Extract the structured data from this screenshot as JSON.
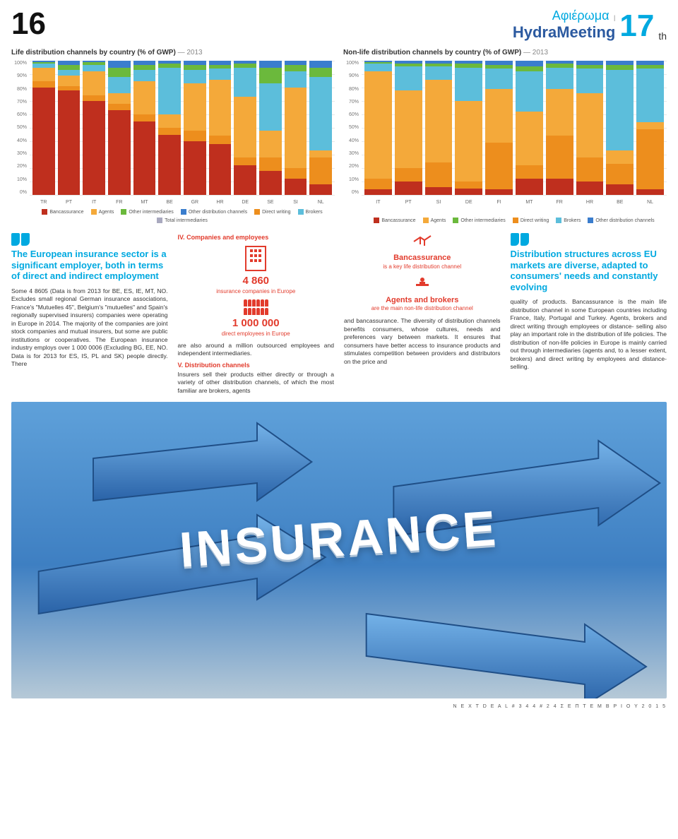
{
  "header": {
    "page_left": "16",
    "sub": "Αφιέρωμα",
    "divider": "|",
    "title": "HydraMeeting",
    "page_right_num": "17",
    "page_right_suffix": "th"
  },
  "charts": {
    "ylabels": [
      "100%",
      "90%",
      "80%",
      "70%",
      "60%",
      "50%",
      "40%",
      "30%",
      "20%",
      "10%",
      "0%"
    ],
    "ylim": [
      0,
      100
    ],
    "ytick_step": 10,
    "grid_color": "#e8e8e8",
    "bg": "#ffffff",
    "series_colors": {
      "Bancassurance": "#bf2f1e",
      "Agents": "#f4a93a",
      "Other intermediaries": "#6bb93c",
      "Other distribution channels": "#3a7dcd",
      "Direct writing": "#ed8e1d",
      "Brokers": "#5cbedb",
      "Total intermediaries": "#a9a9bf"
    },
    "life": {
      "title": "Life distribution channels by country (% of GWP)",
      "year": "— 2013",
      "categories": [
        "TR",
        "PT",
        "IT",
        "FR",
        "MT",
        "BE",
        "GR",
        "HR",
        "DE",
        "SE",
        "SI",
        "NL"
      ],
      "legend": [
        "Bancassurance",
        "Agents",
        "Other intermediaries",
        "Other distribution channels",
        "Direct writing",
        "Brokers",
        "Total intermediaries"
      ],
      "stacks": [
        {
          "Bancassurance": 80,
          "Direct writing": 5,
          "Agents": 10,
          "Brokers": 3,
          "Other intermediaries": 1,
          "Other distribution channels": 1
        },
        {
          "Bancassurance": 78,
          "Direct writing": 3,
          "Agents": 8,
          "Brokers": 4,
          "Other intermediaries": 4,
          "Other distribution channels": 3
        },
        {
          "Bancassurance": 70,
          "Direct writing": 4,
          "Agents": 18,
          "Brokers": 5,
          "Other intermediaries": 2,
          "Other distribution channels": 1
        },
        {
          "Bancassurance": 63,
          "Direct writing": 5,
          "Agents": 8,
          "Brokers": 12,
          "Other intermediaries": 7,
          "Other distribution channels": 5
        },
        {
          "Bancassurance": 55,
          "Direct writing": 5,
          "Agents": 25,
          "Brokers": 8,
          "Other intermediaries": 4,
          "Other distribution channels": 3
        },
        {
          "Bancassurance": 45,
          "Direct writing": 5,
          "Agents": 10,
          "Brokers": 35,
          "Other intermediaries": 3,
          "Other distribution channels": 2
        },
        {
          "Bancassurance": 40,
          "Direct writing": 8,
          "Agents": 35,
          "Brokers": 10,
          "Other intermediaries": 4,
          "Other distribution channels": 3
        },
        {
          "Bancassurance": 38,
          "Direct writing": 6,
          "Agents": 42,
          "Brokers": 8,
          "Other intermediaries": 3,
          "Other distribution channels": 3
        },
        {
          "Bancassurance": 22,
          "Direct writing": 6,
          "Agents": 45,
          "Brokers": 22,
          "Other intermediaries": 3,
          "Other distribution channels": 2
        },
        {
          "Bancassurance": 18,
          "Direct writing": 10,
          "Agents": 20,
          "Brokers": 35,
          "Other intermediaries": 12,
          "Other distribution channels": 5
        },
        {
          "Bancassurance": 12,
          "Direct writing": 8,
          "Agents": 60,
          "Brokers": 12,
          "Other intermediaries": 5,
          "Other distribution channels": 3
        },
        {
          "Bancassurance": 8,
          "Direct writing": 20,
          "Agents": 5,
          "Brokers": 55,
          "Other intermediaries": 7,
          "Other distribution channels": 5
        }
      ]
    },
    "nonlife": {
      "title": "Non-life distribution channels by country (% of GWP)",
      "year": "— 2013",
      "categories": [
        "IT",
        "PT",
        "SI",
        "DE",
        "FI",
        "MT",
        "FR",
        "HR",
        "BE",
        "NL"
      ],
      "legend": [
        "Bancassurance",
        "Agents",
        "Other intermediaries",
        "Direct writing",
        "Brokers",
        "Other distribution channels"
      ],
      "stacks": [
        {
          "Bancassurance": 4,
          "Direct writing": 8,
          "Agents": 80,
          "Brokers": 6,
          "Other intermediaries": 1,
          "Other distribution channels": 1
        },
        {
          "Bancassurance": 10,
          "Direct writing": 10,
          "Agents": 58,
          "Brokers": 18,
          "Other intermediaries": 2,
          "Other distribution channels": 2
        },
        {
          "Bancassurance": 6,
          "Direct writing": 18,
          "Agents": 62,
          "Brokers": 10,
          "Other intermediaries": 2,
          "Other distribution channels": 2
        },
        {
          "Bancassurance": 5,
          "Direct writing": 5,
          "Agents": 60,
          "Brokers": 25,
          "Other intermediaries": 3,
          "Other distribution channels": 2
        },
        {
          "Bancassurance": 4,
          "Direct writing": 35,
          "Agents": 40,
          "Brokers": 15,
          "Other intermediaries": 3,
          "Other distribution channels": 3
        },
        {
          "Bancassurance": 12,
          "Direct writing": 10,
          "Agents": 40,
          "Brokers": 30,
          "Other intermediaries": 4,
          "Other distribution channels": 4
        },
        {
          "Bancassurance": 12,
          "Direct writing": 32,
          "Agents": 35,
          "Brokers": 16,
          "Other intermediaries": 3,
          "Other distribution channels": 2
        },
        {
          "Bancassurance": 10,
          "Direct writing": 18,
          "Agents": 48,
          "Brokers": 18,
          "Other intermediaries": 3,
          "Other distribution channels": 3
        },
        {
          "Bancassurance": 8,
          "Direct writing": 15,
          "Agents": 10,
          "Brokers": 60,
          "Other intermediaries": 4,
          "Other distribution channels": 3
        },
        {
          "Bancassurance": 4,
          "Direct writing": 45,
          "Agents": 5,
          "Brokers": 40,
          "Other intermediaries": 3,
          "Other distribution channels": 3
        }
      ]
    }
  },
  "col1": {
    "quote": "The European insurance sector is a significant employer, both in terms of direct and indirect employment",
    "para": "Some 4 8605 (Data is from 2013 for BE, ES, IE, MT, NO. Excludes small regional German insurance associations, France's \"Mutuelles 45\", Belgium's \"mutuelles\" and Spain's regionally supervised insurers) companies were operating in Europe in 2014. The majority of the companies are joint stock companies and mutual insurers, but some are public institutions or cooperatives.  The European insurance industry employs over 1 000 0006 (Excluding BG, EE, NO. Data is for 2013 for ES, IS, PL and SK) people directly. There"
  },
  "col2": {
    "heading": "IV. Companies and employees",
    "fig1_num": "4 860",
    "fig1_cap": "insurance companies in Europe",
    "fig2_num": "1 000 000",
    "fig2_cap": "direct employees in Europe",
    "p1": "are also around a million outsourced employees and independent intermediaries.",
    "h2": "V. Distribution channels",
    "p2": "Insurers sell their products either directly or through a variety of other distribution channels, of which the most familiar are brokers, agents"
  },
  "col3": {
    "c1_h": "Bancassurance",
    "c1_s": "is a key life distribution channel",
    "c2_h": "Agents and brokers",
    "c2_s": "are the main non-life distribution channel",
    "p": "and bancassurance.  The diversity of distribution channels benefits consumers, whose cultures, needs and preferences vary between markets. It ensures that consumers have better access to insurance products and stimulates competition between providers and distributors on the price and"
  },
  "col4": {
    "quote": "Distribution structures across EU markets are diverse, adapted to consumers' needs and constantly evolving",
    "p": "quality of products.  Bancassurance is the main life distribution channel in some European countries including France, Italy, Portugal and Turkey. Agents, brokers and direct writing through employees or distance- selling also play an important role in the distribution of life policies. The distribution of non-life policies in Europe is mainly carried out through intermediaries (agents and, to a lesser extent, brokers) and direct writing by employees and distance-selling."
  },
  "hero": {
    "word": "INSURANCE"
  },
  "footer": "N E X T D E A L  # 3 4 4  #  2 4  Σ Ε Π Τ Ε Μ Β Ρ Ι Ο Υ  2 0 1 5"
}
